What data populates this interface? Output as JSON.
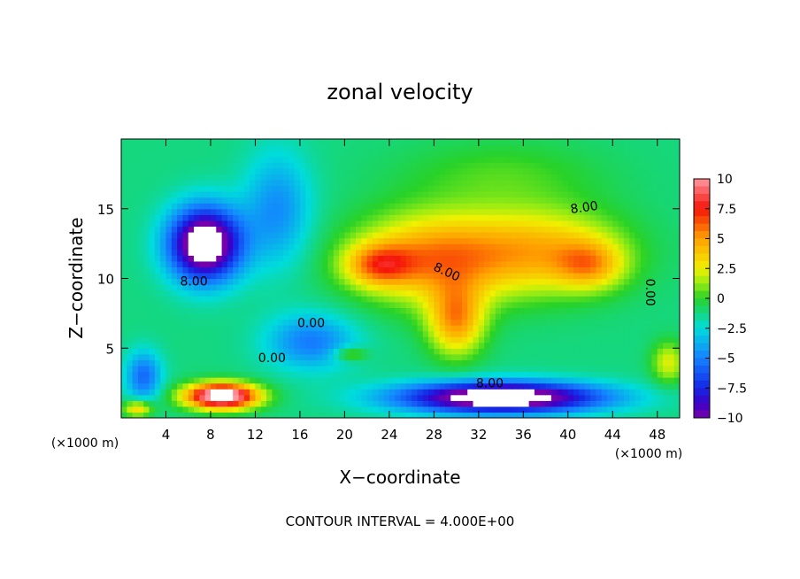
{
  "chart_data": {
    "type": "heatmap",
    "title": "zonal velocity",
    "xlabel": "X−coordinate",
    "ylabel": "Z−coordinate",
    "x_unit_left": "(×1000 m)",
    "x_unit_right": "(×1000 m)",
    "footer": "CONTOUR INTERVAL = 4.000E+00",
    "xlim": [
      0,
      50
    ],
    "ylim": [
      0,
      20
    ],
    "x_ticks": [
      4,
      8,
      12,
      16,
      20,
      24,
      28,
      32,
      36,
      40,
      44,
      48
    ],
    "x_tick_labels": [
      "4",
      "8",
      "12",
      "16",
      "20",
      "24",
      "28",
      "32",
      "36",
      "40",
      "44",
      "48"
    ],
    "y_ticks": [
      5,
      10,
      15
    ],
    "y_tick_labels": [
      "5",
      "10",
      "15"
    ],
    "colorbar": {
      "ticks": [
        10,
        7.5,
        5,
        2.5,
        0,
        -2.5,
        -5,
        -7.5,
        -10
      ],
      "tick_labels": [
        "10",
        "7.5",
        "5",
        "2.5",
        "0",
        "−2.5",
        "−5",
        "−7.5",
        "−10"
      ],
      "range": [
        -10,
        10
      ]
    },
    "contour_labels": [
      {
        "text": "8.00",
        "x": 41.5,
        "y": 14.8,
        "angle": 8
      },
      {
        "text": "8.00",
        "x": 29,
        "y": 10.2,
        "angle": -25
      },
      {
        "text": "8.00",
        "x": 6.5,
        "y": 9.5,
        "angle": 0
      },
      {
        "text": "0.00",
        "x": 17,
        "y": 6.5,
        "angle": 0
      },
      {
        "text": "0.00",
        "x": 13.5,
        "y": 4,
        "angle": 0
      },
      {
        "text": "0.00",
        "x": 47,
        "y": 9,
        "angle": -90
      },
      {
        "text": "8.00",
        "x": 33,
        "y": 2.2,
        "angle": 0
      }
    ],
    "features": [
      {
        "kind": "jet",
        "peak": -12,
        "x": 7.5,
        "y": 12.5,
        "sx": 3.2,
        "sy": 2.6
      },
      {
        "kind": "jet",
        "peak": 6.5,
        "x": 28,
        "y": 11.5,
        "sx": 7,
        "sy": 3.2
      },
      {
        "kind": "jet",
        "peak": 5,
        "x": 38,
        "y": 12,
        "sx": 7,
        "sy": 3
      },
      {
        "kind": "jet",
        "peak": 5,
        "x": 23,
        "y": 11,
        "sx": 3,
        "sy": 1.5
      },
      {
        "kind": "jet",
        "peak": 4,
        "x": 42,
        "y": 11,
        "sx": 3,
        "sy": 1.7
      },
      {
        "kind": "jet",
        "peak": 6,
        "x": 30,
        "y": 7,
        "sx": 2.5,
        "sy": 2.5
      },
      {
        "kind": "jet",
        "peak": 1.5,
        "x": 34,
        "y": 17.5,
        "sx": 9,
        "sy": 2.5
      },
      {
        "kind": "jet",
        "peak": 14,
        "x": 9,
        "y": 1.6,
        "sx": 3.2,
        "sy": 0.9
      },
      {
        "kind": "jet",
        "peak": -12,
        "x": 34,
        "y": 1.5,
        "sx": 9,
        "sy": 1.1
      },
      {
        "kind": "jet",
        "peak": -4,
        "x": 17,
        "y": 5.5,
        "sx": 4,
        "sy": 2
      },
      {
        "kind": "jet",
        "peak": -3.5,
        "x": 14,
        "y": 15,
        "sx": 3,
        "sy": 4
      },
      {
        "kind": "jet",
        "peak": -4.5,
        "x": 2,
        "y": 3,
        "sx": 1.6,
        "sy": 1.8
      },
      {
        "kind": "jet",
        "peak": 3.5,
        "x": 49,
        "y": 4,
        "sx": 1.5,
        "sy": 1.5
      },
      {
        "kind": "jet",
        "peak": 5,
        "x": 1.5,
        "y": 0.7,
        "sx": 1.3,
        "sy": 0.6
      },
      {
        "kind": "jet",
        "peak": 3,
        "x": 20.5,
        "y": 4.6,
        "sx": 1.5,
        "sy": 0.5
      }
    ],
    "grid": false,
    "colormap": "rainbow"
  }
}
